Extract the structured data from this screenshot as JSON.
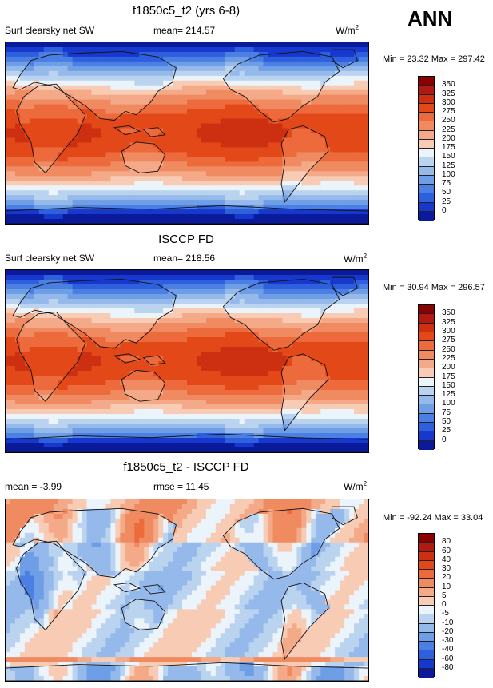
{
  "season": "ANN",
  "units_label": "W/m",
  "units_exp": "2",
  "chart_data": [
    {
      "type": "heatmap",
      "title": "f1850c5_t2 (yrs 6-8)",
      "variable": "Surf clearsky net SW",
      "stat_text": "mean= 214.57",
      "mean": 214.57,
      "minmax_text": "Min =  23.32 Max = 297.42",
      "min": 23.32,
      "max": 297.42,
      "colorbar_ticks": [
        "350",
        "325",
        "300",
        "275",
        "250",
        "225",
        "200",
        "175",
        "150",
        "125",
        "100",
        "75",
        "50",
        "25",
        "0"
      ]
    },
    {
      "type": "heatmap",
      "title": "ISCCP FD",
      "variable": "Surf clearsky net SW",
      "stat_text": "mean= 218.56",
      "mean": 218.56,
      "minmax_text": "Min =  30.94 Max = 296.57",
      "min": 30.94,
      "max": 296.57,
      "colorbar_ticks": [
        "350",
        "325",
        "300",
        "275",
        "250",
        "225",
        "200",
        "175",
        "150",
        "125",
        "100",
        "75",
        "50",
        "25",
        "0"
      ]
    },
    {
      "type": "heatmap",
      "title": "f1850c5_t2 - ISCCP FD",
      "variable": "",
      "stat_text": "mean =  -3.99",
      "mean": -3.99,
      "rmse_text": "rmse =  11.45",
      "rmse": 11.45,
      "minmax_text": "Min = -92.24 Max =  33.04",
      "min": -92.24,
      "max": 33.04,
      "colorbar_ticks": [
        "80",
        "60",
        "40",
        "30",
        "20",
        "10",
        "5",
        "0",
        "-5",
        "-10",
        "-20",
        "-30",
        "-40",
        "-60",
        "-80"
      ]
    }
  ],
  "palette_abs": [
    "#8b0000",
    "#b01a10",
    "#cc3010",
    "#e24818",
    "#ec6a3c",
    "#f08a60",
    "#f4aa88",
    "#f8ccb4",
    "#ebf3fb",
    "#bad3ef",
    "#94b9ea",
    "#6e9ee6",
    "#4c7fe3",
    "#2e5fdc",
    "#1638cc",
    "#0a1a9a"
  ],
  "palette_diff": [
    "#8b0000",
    "#b01a10",
    "#cc3010",
    "#e24818",
    "#ec6a3c",
    "#f08a60",
    "#f4aa88",
    "#f8ccb4",
    "#ebf3fb",
    "#bad3ef",
    "#94b9ea",
    "#6e9ee6",
    "#4c7fe3",
    "#2e5fdc",
    "#1638cc",
    "#0a1a9a"
  ]
}
